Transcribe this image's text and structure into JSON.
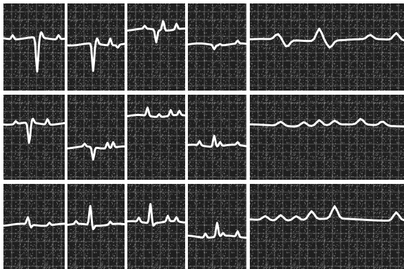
{
  "image": {
    "subject": "ecg-strip-grid",
    "rows": 3,
    "columns": 5,
    "colors": {
      "background": "#ffffff",
      "strip": "#1f1f1f",
      "grid": "#d8d8d8",
      "trace": "#ffffff",
      "divider": "#ffffff"
    }
  }
}
